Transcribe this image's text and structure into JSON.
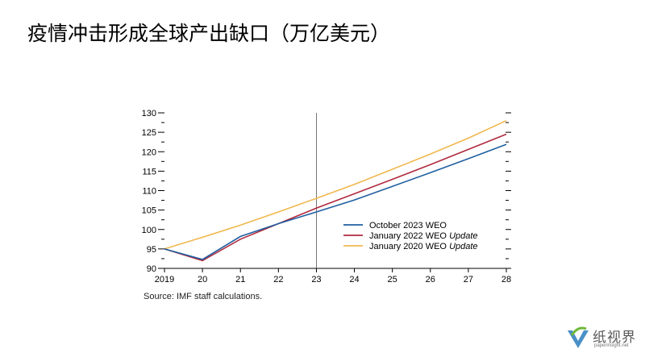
{
  "slide": {
    "title": "疫情冲击形成全球产出缺口（万亿美元）",
    "source": "Source: IMF staff calculations."
  },
  "chart_data": {
    "type": "line",
    "x": [
      2019,
      2020,
      2021,
      2022,
      2023,
      2024,
      2025,
      2026,
      2027,
      2028
    ],
    "x_tick_labels": [
      "2019",
      "20",
      "21",
      "22",
      "23",
      "24",
      "25",
      "26",
      "27",
      "28"
    ],
    "y_ticks": [
      90,
      95,
      100,
      105,
      110,
      115,
      120,
      125,
      130
    ],
    "ylim": [
      90,
      130
    ],
    "xlim": [
      2019,
      2028
    ],
    "grid": false,
    "vertical_marker_x": 2023,
    "legend_position": "lower-right",
    "series": [
      {
        "name": "October 2023 WEO",
        "name_italic": "",
        "color": "#1f5fa0",
        "values": [
          95.0,
          92.3,
          98.2,
          101.5,
          104.5,
          107.6,
          111.1,
          114.6,
          118.2,
          121.9
        ]
      },
      {
        "name": "January 2022 WEO ",
        "name_italic": "Update",
        "color": "#b02a3e",
        "values": [
          95.0,
          92.0,
          97.5,
          101.5,
          105.5,
          109.2,
          112.9,
          116.7,
          120.6,
          124.5
        ]
      },
      {
        "name": "January 2020 WEO ",
        "name_italic": "Update",
        "color": "#f0b84e",
        "values": [
          95.0,
          98.0,
          101.1,
          104.5,
          108.0,
          111.6,
          115.5,
          119.4,
          123.5,
          128.0
        ]
      }
    ]
  },
  "logo": {
    "text": "纸视界",
    "subtext": "paperinsight.net",
    "colors": {
      "blue": "#4a90c8",
      "green": "#6fb83a"
    }
  }
}
